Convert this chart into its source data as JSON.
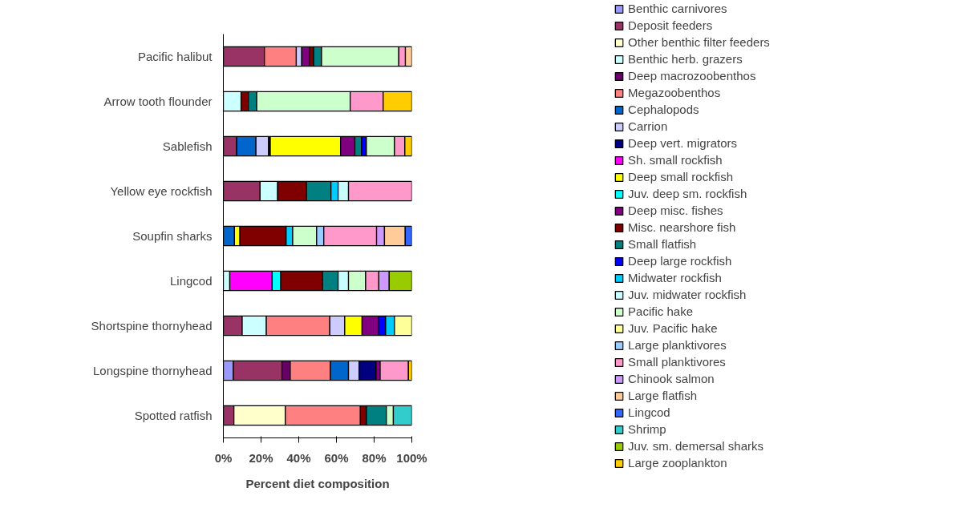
{
  "chart_data": {
    "type": "bar",
    "orientation": "horizontal",
    "stacked": true,
    "categories": [
      "Pacific halibut",
      "Arrow tooth flounder",
      "Sablefish",
      "Yellow eye rockfish",
      "Soupfin sharks",
      "Lingcod",
      "Shortspine thornyhead",
      "Longspine thornyhead",
      "Spotted ratfish"
    ],
    "xlabel": "Percent diet composition",
    "xlim": [
      0,
      100
    ],
    "xticks": [
      {
        "value": 0,
        "label": "0%"
      },
      {
        "value": 20,
        "label": "20%"
      },
      {
        "value": 40,
        "label": "40%"
      },
      {
        "value": 60,
        "label": "60%"
      },
      {
        "value": 80,
        "label": "80%"
      },
      {
        "value": 100,
        "label": "100%"
      }
    ],
    "grid": false,
    "legend": "right",
    "series": [
      {
        "name": "Benthic carnivores",
        "color": "#9999ff",
        "values": [
          null,
          null,
          null,
          null,
          null,
          null,
          null,
          5.3,
          null
        ]
      },
      {
        "name": "Deposit feeders",
        "color": "#993366",
        "values": [
          21.8,
          null,
          7.1,
          19.5,
          null,
          null,
          10.0,
          25.8,
          5.6
        ]
      },
      {
        "name": "Other benthic filter feeders",
        "color": "#ffffcc",
        "values": [
          null,
          null,
          null,
          null,
          null,
          null,
          null,
          null,
          27.3
        ]
      },
      {
        "name": "Benthic herb. grazers",
        "color": "#ccffff",
        "values": [
          null,
          9.4,
          null,
          9.3,
          null,
          3.4,
          12.8,
          null,
          null
        ]
      },
      {
        "name": "Deep macrozoobenthos",
        "color": "#660066",
        "values": [
          null,
          null,
          null,
          null,
          null,
          null,
          null,
          4.4,
          null
        ]
      },
      {
        "name": "Megazoobenthos",
        "color": "#ff8080",
        "values": [
          16.9,
          null,
          null,
          null,
          null,
          null,
          33.7,
          21.3,
          39.8
        ]
      },
      {
        "name": "Cephalopods",
        "color": "#0066cc",
        "values": [
          null,
          null,
          10.2,
          null,
          5.9,
          null,
          null,
          9.6,
          null
        ]
      },
      {
        "name": "Carrion",
        "color": "#ccccff",
        "values": [
          2.9,
          null,
          6.7,
          null,
          null,
          null,
          7.9,
          5.6,
          null
        ]
      },
      {
        "name": "Deep vert. migrators",
        "color": "#000080",
        "values": [
          null,
          null,
          0.9,
          null,
          null,
          null,
          null,
          9.0,
          null
        ]
      },
      {
        "name": "Sh. small rockfish",
        "color": "#ff00ff",
        "values": [
          null,
          null,
          null,
          null,
          null,
          22.5,
          null,
          null,
          null
        ]
      },
      {
        "name": "Deep small rockfish",
        "color": "#ffff00",
        "values": [
          null,
          null,
          37.3,
          null,
          2.9,
          null,
          9.2,
          null,
          null
        ]
      },
      {
        "name": "Juv. deep sm. rockfish",
        "color": "#00ffff",
        "values": [
          null,
          null,
          null,
          null,
          null,
          4.5,
          null,
          null,
          null
        ]
      },
      {
        "name": "Deep misc. fishes",
        "color": "#800080",
        "values": [
          4.1,
          null,
          7.6,
          null,
          null,
          null,
          8.7,
          2.2,
          null
        ]
      },
      {
        "name": "Misc. nearshore fish",
        "color": "#800000",
        "values": [
          2.2,
          3.9,
          null,
          15.3,
          24.5,
          22.2,
          null,
          null,
          3.2
        ]
      },
      {
        "name": "Small flatfish",
        "color": "#008080",
        "values": [
          4.2,
          4.4,
          3.5,
          13.0,
          null,
          8.3,
          null,
          null,
          10.6
        ]
      },
      {
        "name": "Deep large rockfish",
        "color": "#0000ff",
        "values": [
          null,
          null,
          2.6,
          null,
          null,
          null,
          3.8,
          null,
          null
        ]
      },
      {
        "name": "Midwater rockfish",
        "color": "#00ccff",
        "values": [
          null,
          null,
          null,
          3.8,
          3.5,
          null,
          4.7,
          null,
          null
        ]
      },
      {
        "name": "Juv. midwater rockfish",
        "color": "#c9fcff",
        "values": [
          null,
          null,
          null,
          5.5,
          null,
          5.5,
          null,
          null,
          null
        ]
      },
      {
        "name": "Pacific hake",
        "color": "#ccffcc",
        "values": [
          41.0,
          49.6,
          14.9,
          null,
          12.7,
          9.1,
          null,
          null,
          3.7
        ]
      },
      {
        "name": "Juv. Pacific hake",
        "color": "#ffff99",
        "values": [
          null,
          null,
          null,
          null,
          null,
          null,
          9.2,
          null,
          null
        ]
      },
      {
        "name": "Large planktivores",
        "color": "#99ccff",
        "values": [
          null,
          null,
          null,
          null,
          3.8,
          null,
          null,
          null,
          null
        ]
      },
      {
        "name": "Small planktivores",
        "color": "#ff99cc",
        "values": [
          3.5,
          17.5,
          5.5,
          33.6,
          28.0,
          7.0,
          null,
          15.0,
          null
        ]
      },
      {
        "name": "Chinook salmon",
        "color": "#cc99ff",
        "values": [
          null,
          null,
          null,
          null,
          4.2,
          5.5,
          null,
          null,
          null
        ]
      },
      {
        "name": "Large flatfish",
        "color": "#ffcc99",
        "values": [
          3.4,
          null,
          null,
          null,
          11.0,
          null,
          null,
          null,
          null
        ]
      },
      {
        "name": "Lingcod",
        "color": "#3366ff",
        "values": [
          null,
          null,
          null,
          null,
          3.5,
          null,
          null,
          null,
          null
        ]
      },
      {
        "name": "Shrimp",
        "color": "#33cccc",
        "values": [
          null,
          null,
          null,
          null,
          null,
          null,
          null,
          null,
          9.8
        ]
      },
      {
        "name": "Juv. sm. demersal sharks",
        "color": "#99cc00",
        "values": [
          null,
          null,
          null,
          null,
          null,
          12.0,
          null,
          null,
          null
        ]
      },
      {
        "name": "Large zooplankton",
        "color": "#ffcc00",
        "values": [
          null,
          15.2,
          3.7,
          null,
          null,
          null,
          null,
          1.8,
          null
        ]
      }
    ]
  }
}
